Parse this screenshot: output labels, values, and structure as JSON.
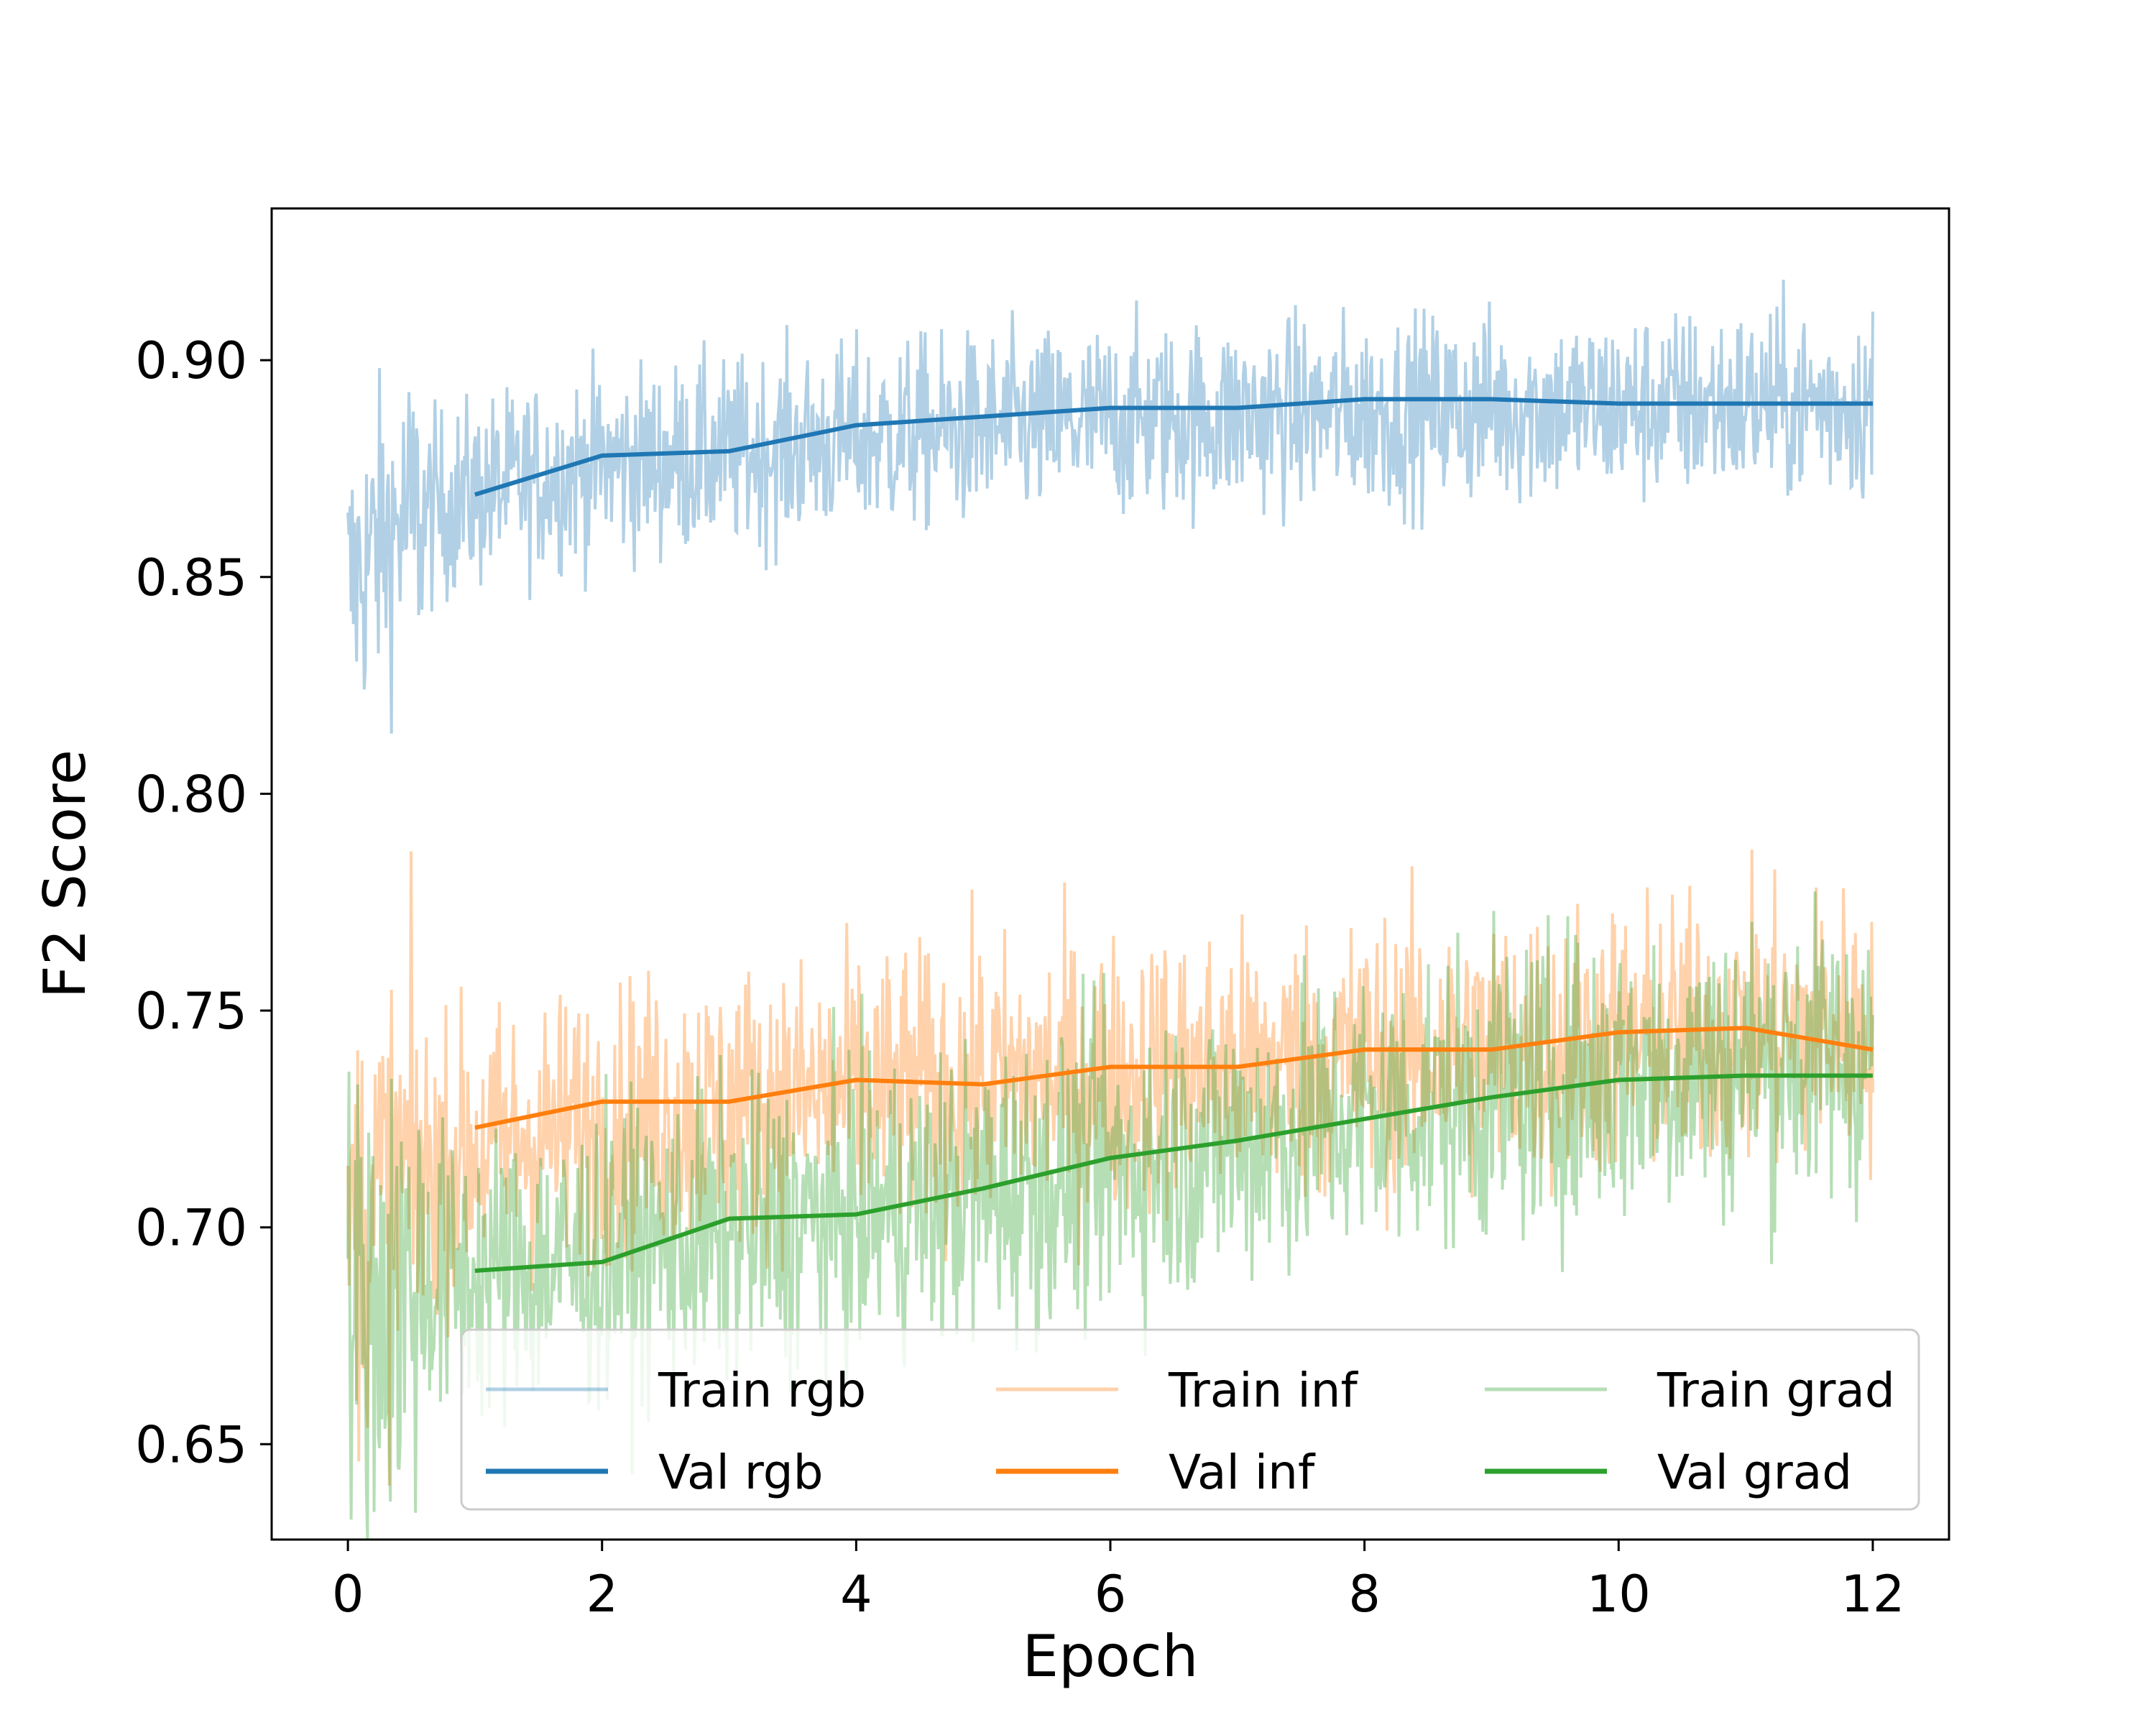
{
  "chart_data": {
    "type": "line",
    "xlabel": "Epoch",
    "ylabel": "F2 Score",
    "xlim": [
      -0.6,
      12.6
    ],
    "ylim": [
      0.628,
      0.935
    ],
    "x_ticks": [
      0,
      2,
      4,
      6,
      8,
      10,
      12
    ],
    "y_ticks": [
      0.65,
      0.7,
      0.75,
      0.8,
      0.85,
      0.9
    ],
    "y_tick_labels": [
      "0.65",
      "0.70",
      "0.75",
      "0.80",
      "0.85",
      "0.90"
    ],
    "grid": false,
    "legend_position": "lower-right",
    "legend_columns": 3,
    "colors": {
      "rgb": "#1f77b4",
      "inf": "#ff7f0e",
      "grad": "#2ca02c"
    },
    "series": [
      {
        "name": "Train rgb",
        "key": "rgb",
        "kind": "train",
        "color": "#1f77b4",
        "alpha": 0.35,
        "x": [
          0,
          0.25,
          0.5,
          1,
          1.5,
          2,
          3,
          4,
          5,
          6,
          7,
          8,
          9,
          10,
          11,
          12
        ],
        "values": [
          0.847,
          0.858,
          0.864,
          0.869,
          0.873,
          0.876,
          0.878,
          0.882,
          0.884,
          0.886,
          0.887,
          0.888,
          0.889,
          0.889,
          0.89,
          0.89
        ],
        "noise": 0.011
      },
      {
        "name": "Train inf",
        "key": "inf",
        "kind": "train",
        "color": "#ff7f0e",
        "alpha": 0.35,
        "x": [
          0,
          0.5,
          1,
          2,
          3,
          4,
          5,
          6,
          7,
          8,
          9,
          10,
          11,
          12
        ],
        "values": [
          0.7,
          0.712,
          0.718,
          0.724,
          0.728,
          0.731,
          0.733,
          0.735,
          0.737,
          0.739,
          0.741,
          0.743,
          0.745,
          0.746
        ],
        "noise": 0.016
      },
      {
        "name": "Train grad",
        "key": "grad",
        "kind": "train",
        "color": "#2ca02c",
        "alpha": 0.35,
        "x": [
          0,
          0.5,
          1,
          2,
          3,
          4,
          5,
          6,
          7,
          8,
          9,
          10,
          11,
          12
        ],
        "values": [
          0.682,
          0.686,
          0.689,
          0.693,
          0.698,
          0.703,
          0.708,
          0.714,
          0.72,
          0.726,
          0.731,
          0.735,
          0.738,
          0.74
        ],
        "noise": 0.017
      },
      {
        "name": "Val rgb",
        "key": "rgb",
        "kind": "val",
        "color": "#1f77b4",
        "x": [
          1,
          2,
          3,
          4,
          5,
          6,
          7,
          8,
          9,
          10,
          11,
          12
        ],
        "values": [
          0.869,
          0.878,
          0.879,
          0.885,
          0.887,
          0.889,
          0.889,
          0.891,
          0.891,
          0.89,
          0.89,
          0.89
        ]
      },
      {
        "name": "Val inf",
        "key": "inf",
        "kind": "val",
        "color": "#ff7f0e",
        "x": [
          1,
          2,
          3,
          4,
          5,
          6,
          7,
          8,
          9,
          10,
          11,
          12
        ],
        "values": [
          0.723,
          0.729,
          0.729,
          0.734,
          0.733,
          0.737,
          0.737,
          0.741,
          0.741,
          0.745,
          0.746,
          0.741
        ]
      },
      {
        "name": "Val grad",
        "key": "grad",
        "kind": "val",
        "color": "#2ca02c",
        "x": [
          1,
          2,
          3,
          4,
          5,
          6,
          7,
          8,
          9,
          10,
          11,
          12
        ],
        "values": [
          0.69,
          0.692,
          0.702,
          0.703,
          0.709,
          0.716,
          0.72,
          0.725,
          0.73,
          0.734,
          0.735,
          0.735
        ]
      }
    ],
    "legend": [
      [
        "Train rgb",
        "Train inf",
        "Train grad"
      ],
      [
        "Val rgb",
        "Val inf",
        "Val grad"
      ]
    ]
  }
}
